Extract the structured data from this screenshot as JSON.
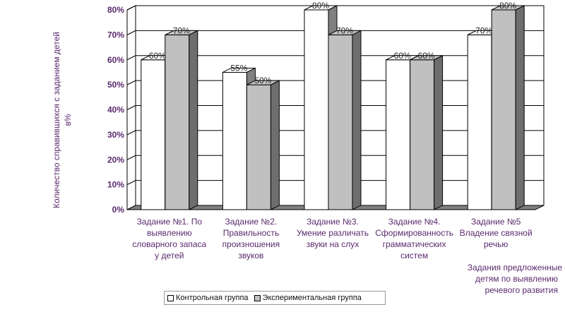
{
  "chart_data": {
    "type": "bar",
    "categories": [
      [
        "Задание №1. По",
        "выявлению",
        "словарного запаса",
        "у детей"
      ],
      [
        "Задание №2.",
        "Правильность",
        "произношения",
        "звуков"
      ],
      [
        "Задание №3.",
        "Умение различать",
        "звуки на слух"
      ],
      [
        "Задание №4.",
        "Сформированность",
        "грамматических",
        "систем"
      ],
      [
        "Задание №5",
        "Владение связной",
        "речью"
      ]
    ],
    "series": [
      {
        "name": "Контрольная группа",
        "values": [
          60,
          55,
          80,
          60,
          70
        ],
        "color": "#ffffff"
      },
      {
        "name": "Экспериментальная группа",
        "values": [
          70,
          50,
          70,
          60,
          80
        ],
        "color": "#c0c0c0"
      }
    ],
    "data_labels": [
      [
        "60%",
        "55%",
        "80%",
        "60%",
        "70%"
      ],
      [
        "70%",
        "50%",
        "70%",
        "60%",
        "80%"
      ]
    ],
    "ylim": [
      0,
      80
    ],
    "yticks": [
      "0%",
      "10%",
      "20%",
      "30%",
      "40%",
      "50%",
      "60%",
      "70%",
      "80%"
    ],
    "ylabel": [
      "Количество справившихся с заданием детей",
      "в%"
    ],
    "xlabel": [
      "Задания предложенные",
      "детям по выявлению",
      "речевого развития"
    ],
    "grid": true,
    "legend": "bottom"
  }
}
